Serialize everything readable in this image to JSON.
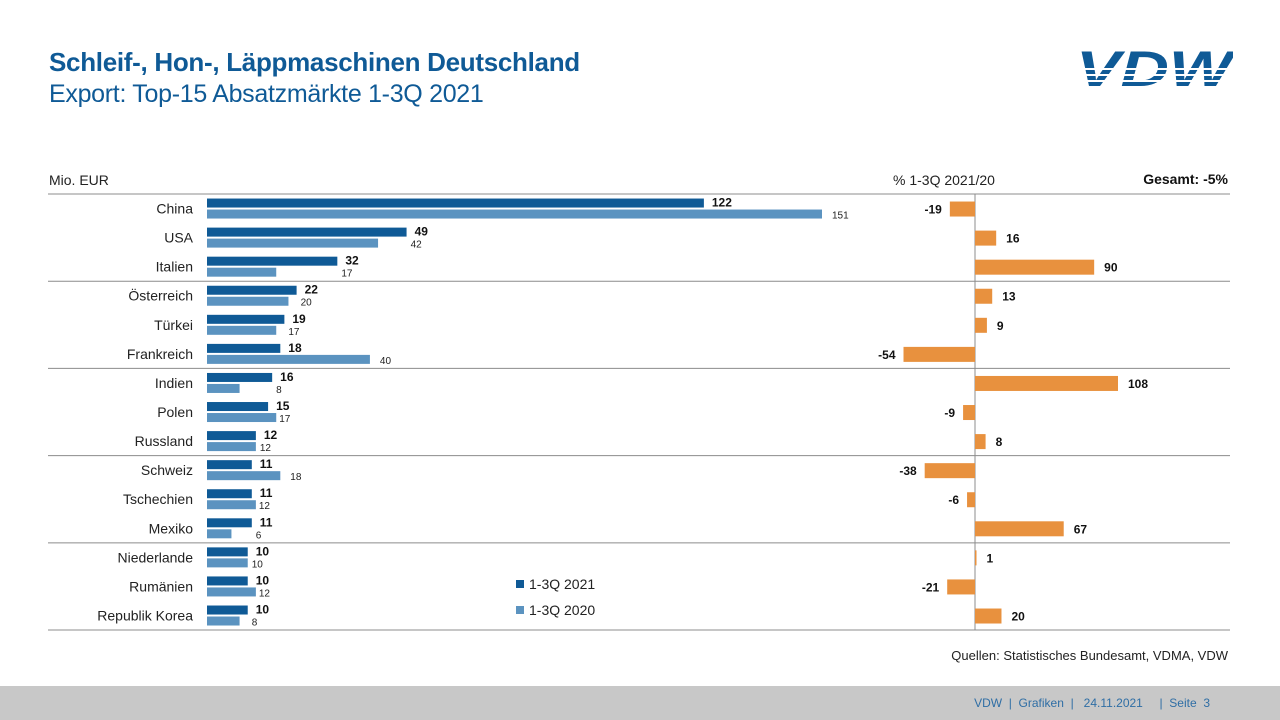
{
  "header": {
    "title": "Schleif-, Hon-, Läppmaschinen Deutschland",
    "subtitle": "Export: Top-15 Absatzmärkte 1-3Q 2021",
    "logo_text": "VDW"
  },
  "colors": {
    "title": "#0f5a96",
    "series_2021": "#0f5a96",
    "series_2020": "#5b93c0",
    "change": "#e8913e",
    "grid": "#8c8c8c",
    "footer_bg": "#c8c8c8",
    "footer_text": "#2f6ea5"
  },
  "chart_data": [
    {
      "type": "bar",
      "orientation": "horizontal",
      "title": "Export: Top-15 Absatzmärkte 1-3Q 2021",
      "unit_label": "Mio. EUR",
      "categories": [
        "China",
        "USA",
        "Italien",
        "Österreich",
        "Türkei",
        "Frankreich",
        "Indien",
        "Polen",
        "Russland",
        "Schweiz",
        "Tschechien",
        "Mexiko",
        "Niederlande",
        "Rumänien",
        "Republik Korea"
      ],
      "series": [
        {
          "name": "1-3Q 2021",
          "values": [
            122,
            49,
            32,
            22,
            19,
            18,
            16,
            15,
            12,
            11,
            11,
            11,
            10,
            10,
            10
          ]
        },
        {
          "name": "1-3Q 2020",
          "values": [
            151,
            42,
            17,
            20,
            17,
            40,
            8,
            17,
            12,
            18,
            12,
            6,
            10,
            12,
            8
          ]
        }
      ],
      "xlim": [
        0,
        151
      ],
      "grid": false,
      "group_separators_after": [
        2,
        5,
        8,
        11,
        14
      ],
      "legend": [
        "1-3Q 2021",
        "1-3Q 2020"
      ],
      "legend_position": "bottom-center"
    },
    {
      "type": "bar",
      "orientation": "horizontal",
      "title": "% 1-3Q 2021/20",
      "categories": [
        "China",
        "USA",
        "Italien",
        "Österreich",
        "Türkei",
        "Frankreich",
        "Indien",
        "Polen",
        "Russland",
        "Schweiz",
        "Tschechien",
        "Mexiko",
        "Niederlande",
        "Rumänien",
        "Republik Korea"
      ],
      "values": [
        -19,
        16,
        90,
        13,
        9,
        -54,
        108,
        -9,
        8,
        -38,
        -6,
        67,
        1,
        -21,
        20
      ],
      "total_label": "Gesamt: -5%",
      "total_value": -5,
      "xlim": [
        -54,
        108
      ]
    }
  ],
  "labels": {
    "unit": "Mio. EUR",
    "pct_title": "% 1-3Q 2021/20",
    "total": "Gesamt: -5%"
  },
  "legend": [
    {
      "label": "1-3Q 2021"
    },
    {
      "label": "1-3Q 2020"
    }
  ],
  "source": "Quellen:  Statistisches Bundesamt, VDMA,  VDW",
  "footer": "VDW  |  Grafiken  |   24.11.2021     |  Seite  3"
}
